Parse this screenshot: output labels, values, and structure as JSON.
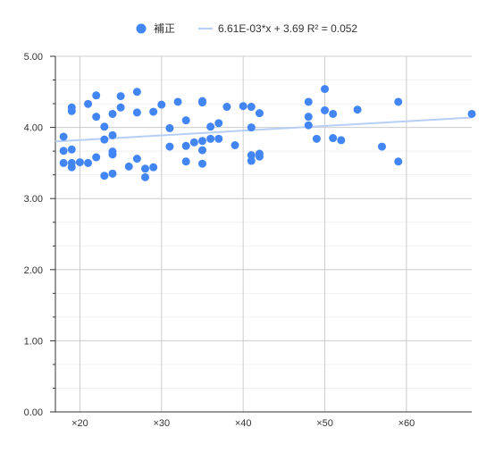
{
  "chart_data": {
    "type": "scatter",
    "title": "",
    "xlabel": "",
    "ylabel": "",
    "xlim": [
      17,
      68
    ],
    "ylim": [
      0,
      5
    ],
    "grid": true,
    "legend_position": "top",
    "y_ticks": [
      "0.00",
      "1.00",
      "2.00",
      "3.00",
      "4.00",
      "5.00"
    ],
    "y_tick_values": [
      0,
      1,
      2,
      3,
      4,
      5
    ],
    "x_ticks": [
      "×20",
      "×30",
      "×40",
      "×50",
      "×60"
    ],
    "x_tick_values": [
      20,
      30,
      40,
      50,
      60
    ],
    "series": [
      {
        "name": "補正",
        "color": "#4285f4",
        "points": [
          [
            18,
            3.87
          ],
          [
            18,
            3.67
          ],
          [
            18,
            3.5
          ],
          [
            19,
            4.28
          ],
          [
            19,
            4.23
          ],
          [
            19,
            3.69
          ],
          [
            19,
            3.5
          ],
          [
            19,
            3.44
          ],
          [
            20,
            3.51
          ],
          [
            21,
            4.33
          ],
          [
            21,
            3.5
          ],
          [
            22,
            4.45
          ],
          [
            22,
            4.15
          ],
          [
            22,
            3.58
          ],
          [
            23,
            4.01
          ],
          [
            23,
            3.83
          ],
          [
            23,
            3.32
          ],
          [
            24,
            4.19
          ],
          [
            24,
            3.89
          ],
          [
            24,
            3.66
          ],
          [
            24,
            3.62
          ],
          [
            24,
            3.35
          ],
          [
            25,
            4.44
          ],
          [
            25,
            4.28
          ],
          [
            26,
            3.45
          ],
          [
            27,
            4.5
          ],
          [
            27,
            4.21
          ],
          [
            27,
            3.56
          ],
          [
            28,
            3.42
          ],
          [
            28,
            3.3
          ],
          [
            29,
            4.22
          ],
          [
            29,
            3.44
          ],
          [
            30,
            4.32
          ],
          [
            31,
            3.99
          ],
          [
            31,
            3.73
          ],
          [
            32,
            4.36
          ],
          [
            33,
            4.1
          ],
          [
            33,
            3.74
          ],
          [
            33,
            3.52
          ],
          [
            34,
            3.79
          ],
          [
            35,
            4.37
          ],
          [
            35,
            4.35
          ],
          [
            35,
            3.81
          ],
          [
            35,
            3.68
          ],
          [
            35,
            3.49
          ],
          [
            36,
            4.01
          ],
          [
            36,
            3.84
          ],
          [
            37,
            4.06
          ],
          [
            37,
            3.84
          ],
          [
            38,
            4.29
          ],
          [
            39,
            3.75
          ],
          [
            40,
            4.3
          ],
          [
            41,
            4.29
          ],
          [
            41,
            4.0
          ],
          [
            41,
            3.61
          ],
          [
            41,
            3.53
          ],
          [
            42,
            4.2
          ],
          [
            42,
            3.63
          ],
          [
            42,
            3.59
          ],
          [
            48,
            4.36
          ],
          [
            48,
            4.15
          ],
          [
            48,
            4.03
          ],
          [
            49,
            3.84
          ],
          [
            50,
            4.54
          ],
          [
            50,
            4.24
          ],
          [
            51,
            4.19
          ],
          [
            51,
            3.85
          ],
          [
            52,
            3.82
          ],
          [
            54,
            4.25
          ],
          [
            57,
            3.73
          ],
          [
            59,
            4.36
          ],
          [
            59,
            3.52
          ],
          [
            68,
            4.19
          ]
        ]
      }
    ],
    "trendline": {
      "label": "6.61E-03*x + 3.69 R² = 0.052",
      "slope": 0.00661,
      "intercept": 3.69,
      "color": "#b6cff5"
    }
  }
}
